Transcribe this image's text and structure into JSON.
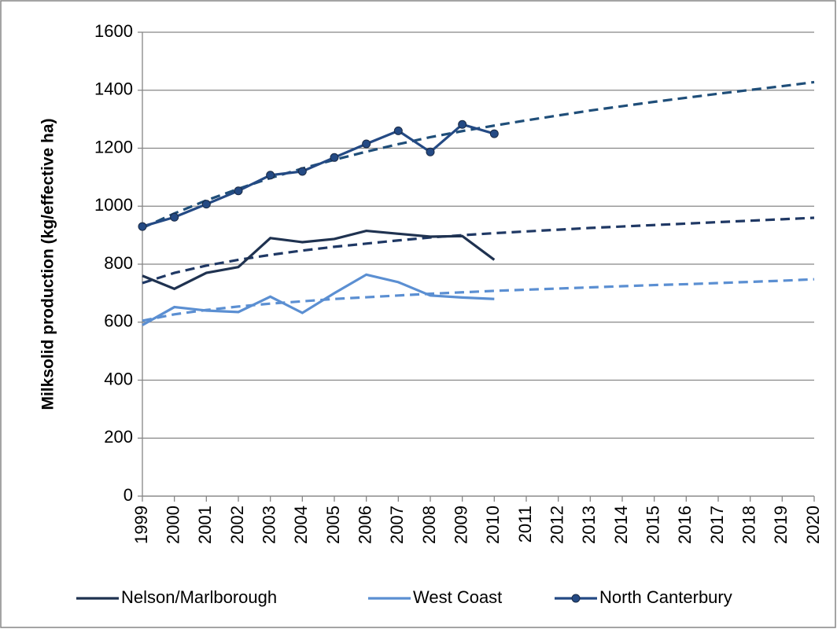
{
  "chart_data": {
    "type": "line",
    "y_label": "Milksolid production (kg/effective ha)",
    "categories": [
      "1999",
      "2000",
      "2001",
      "2002",
      "2003",
      "2004",
      "2005",
      "2006",
      "2007",
      "2008",
      "2009",
      "2010",
      "2011",
      "2012",
      "2013",
      "2014",
      "2015",
      "2016",
      "2017",
      "2018",
      "2019",
      "2020"
    ],
    "series": [
      {
        "name": "Nelson/Marlborough",
        "color": "#1f3250",
        "marker": false,
        "values": [
          760,
          715,
          770,
          790,
          890,
          876,
          887,
          915,
          905,
          895,
          897,
          815,
          null,
          null,
          null,
          null,
          null,
          null,
          null,
          null,
          null,
          null
        ]
      },
      {
        "name": "West Coast",
        "color": "#5b8fd2",
        "marker": false,
        "values": [
          590,
          652,
          640,
          635,
          688,
          632,
          700,
          764,
          738,
          692,
          685,
          680,
          null,
          null,
          null,
          null,
          null,
          null,
          null,
          null,
          null,
          null
        ]
      },
      {
        "name": "North Canterbury",
        "color": "#244a84",
        "marker": true,
        "values": [
          930,
          962,
          1007,
          1053,
          1107,
          1120,
          1168,
          1215,
          1260,
          1187,
          1282,
          1250,
          null,
          null,
          null,
          null,
          null,
          null,
          null,
          null,
          null,
          null
        ]
      }
    ],
    "trendlines": [
      {
        "color": "#1f3864",
        "dash": true,
        "values": [
          735,
          770,
          795,
          815,
          832,
          847,
          860,
          871,
          882,
          892,
          900,
          907,
          913,
          919,
          925,
          930,
          935,
          940,
          945,
          950,
          955,
          960
        ]
      },
      {
        "color": "#5b8fd2",
        "dash": true,
        "values": [
          605,
          627,
          642,
          654,
          664,
          672,
          680,
          686,
          692,
          698,
          703,
          708,
          712,
          716,
          720,
          724,
          728,
          731,
          735,
          739,
          743,
          748
        ]
      },
      {
        "color": "#1f4e79",
        "dash": true,
        "values": [
          925,
          975,
          1020,
          1060,
          1097,
          1130,
          1160,
          1188,
          1214,
          1238,
          1259,
          1278,
          1296,
          1313,
          1330,
          1345,
          1360,
          1374,
          1388,
          1401,
          1414,
          1428
        ]
      }
    ],
    "ylim": [
      0,
      1600
    ],
    "yticks": [
      0,
      200,
      400,
      600,
      800,
      1000,
      1200,
      1400,
      1600
    ],
    "grid": true,
    "legend": "bottom"
  }
}
